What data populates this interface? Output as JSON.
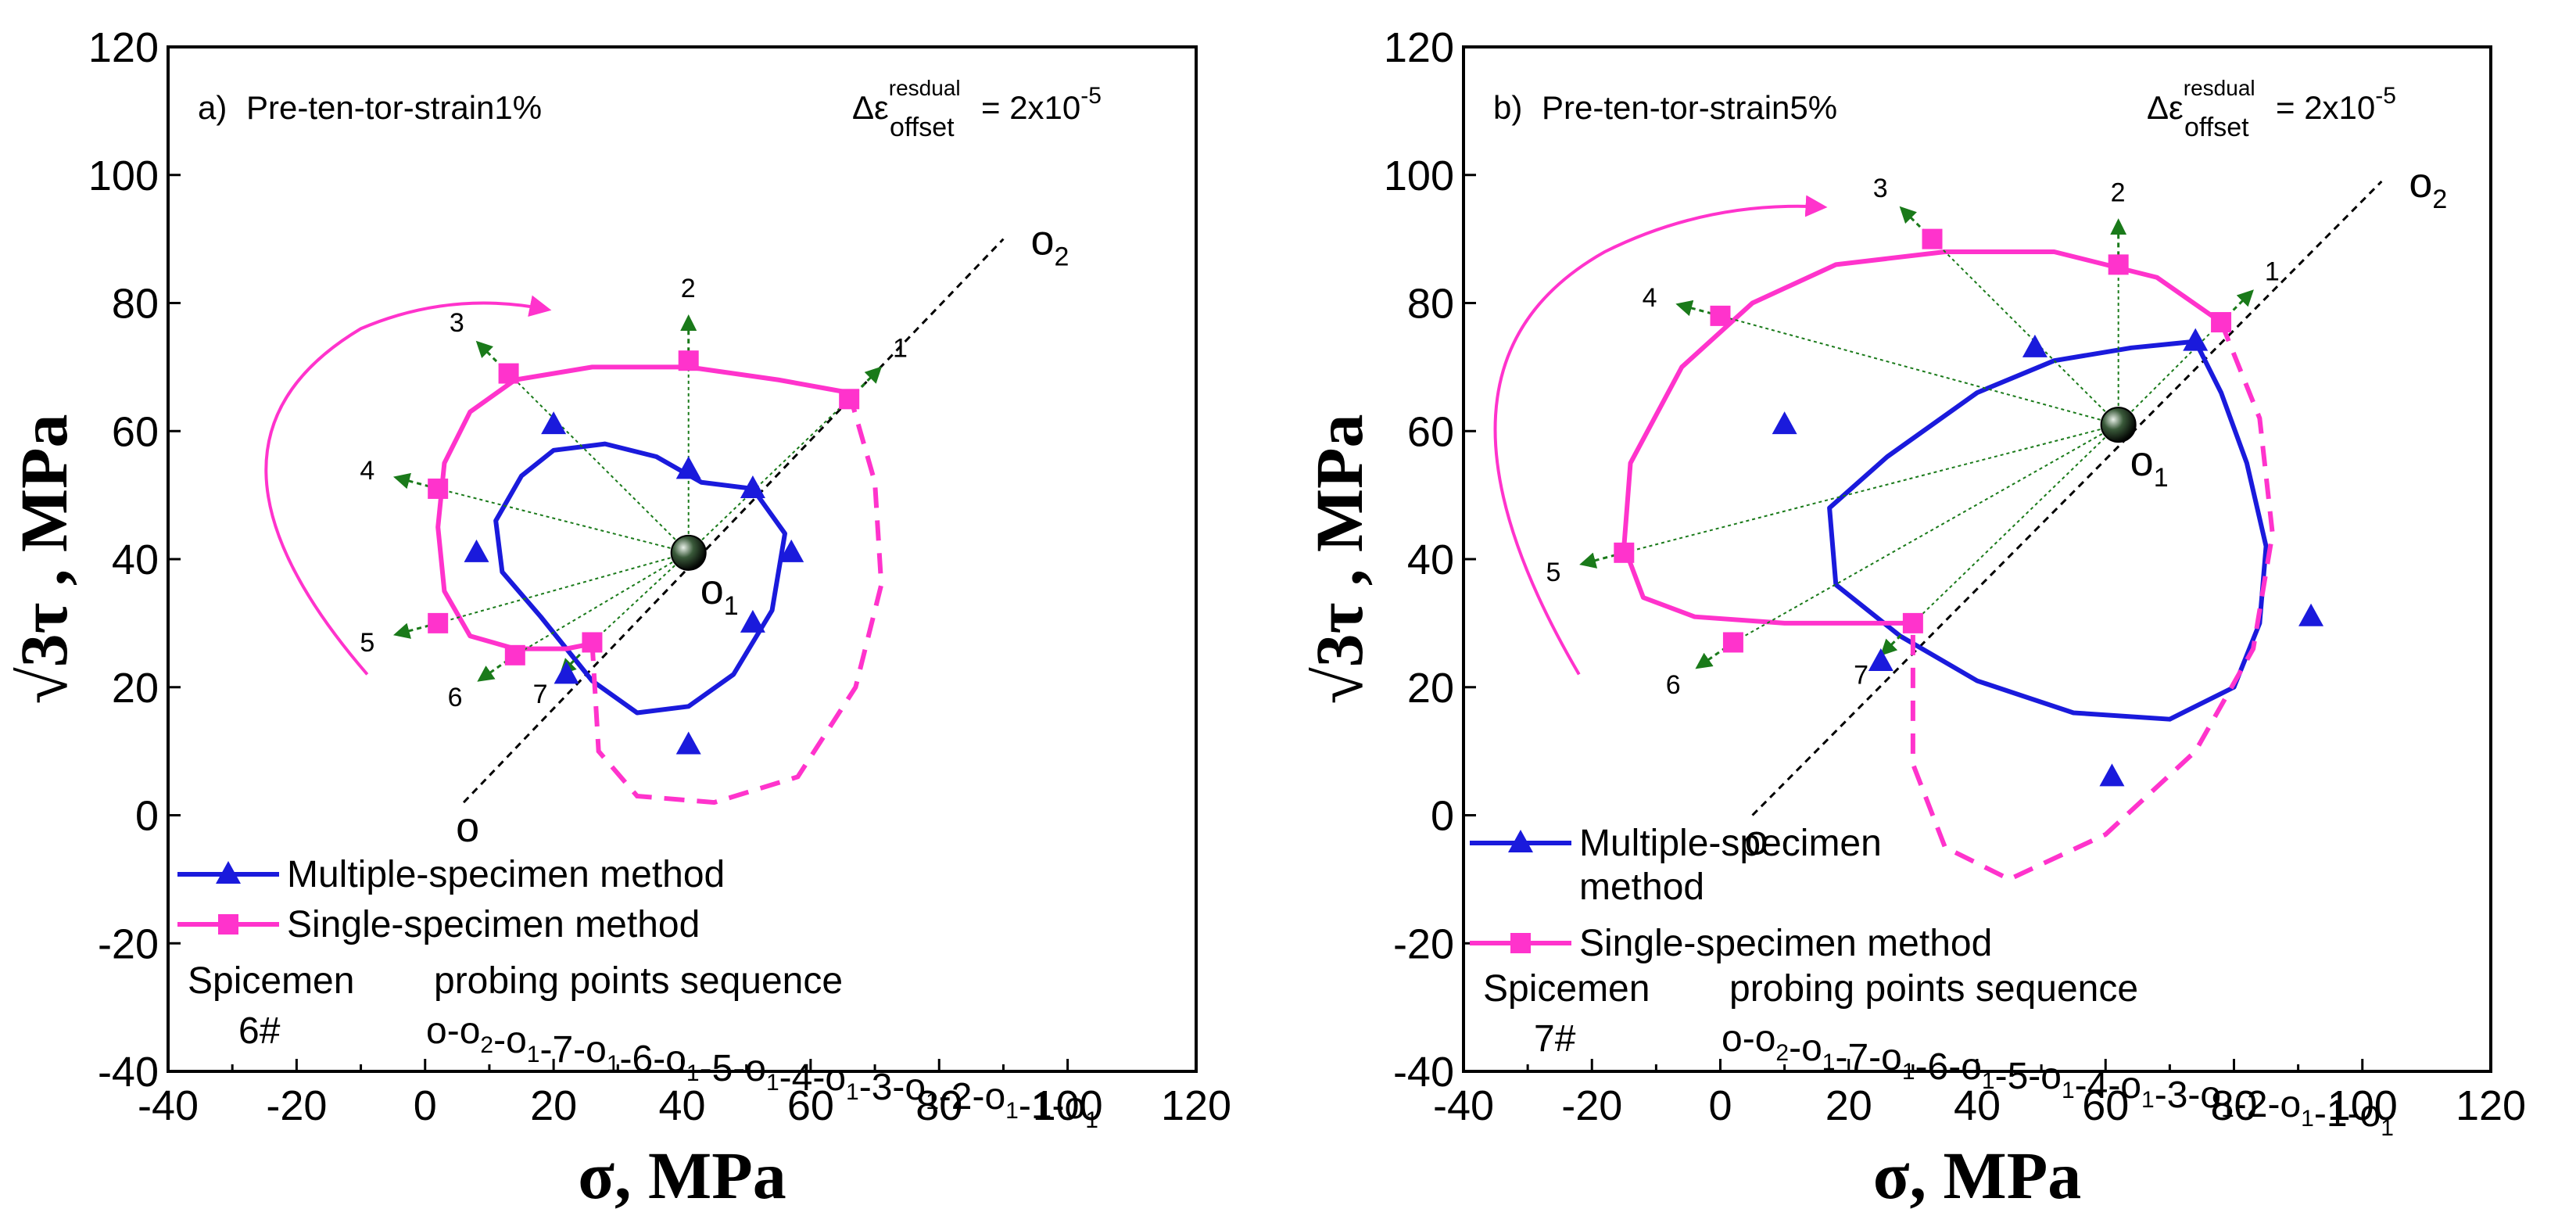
{
  "colors": {
    "multiple": "#1a1adc",
    "single": "#ff33cc",
    "probe": "#1a7a1a",
    "axis": "#000000"
  },
  "chart_data": [
    {
      "type": "scatter",
      "panel_label": "a)",
      "title": "Pre-ten-tor-strain1%",
      "offset_prefix": "Δε",
      "offset_sup": "resdual",
      "offset_sub": "offset",
      "offset_value": "= 2x10",
      "offset_exp": "-5",
      "xlabel": "σ,  MPa",
      "ylabel": "√3τ , MPa",
      "xlim": [
        -40,
        120
      ],
      "ylim": [
        -40,
        120
      ],
      "xticks": [
        "-40",
        "-20",
        "0",
        "20",
        "40",
        "60",
        "80",
        "100",
        "120"
      ],
      "yticks": [
        "-40",
        "-20",
        "0",
        "20",
        "40",
        "60",
        "80",
        "100",
        "120"
      ],
      "origin_o": {
        "label": "o",
        "x": 6,
        "y": 2
      },
      "origin_o1": {
        "label": "o",
        "sub": "1",
        "x": 41,
        "y": 41
      },
      "origin_o2": {
        "label": "o",
        "sub": "2",
        "x": 90,
        "y": 90
      },
      "probe_labels": [
        "1",
        "2",
        "3",
        "4",
        "5",
        "6",
        "7"
      ],
      "probe_dirs": [
        45,
        90,
        135,
        165,
        195,
        215,
        225
      ],
      "series": [
        {
          "name": "Multiple-specimen method",
          "marker": "triangle",
          "points": [
            [
              20,
              61
            ],
            [
              41,
              54
            ],
            [
              51,
              51
            ],
            [
              8,
              41
            ],
            [
              57,
              41
            ],
            [
              51,
              30
            ],
            [
              22,
              22
            ],
            [
              41,
              11
            ]
          ]
        },
        {
          "name": "Single-specimen method",
          "marker": "square",
          "points": [
            [
              13,
              69
            ],
            [
              41,
              71
            ],
            [
              66,
              65
            ],
            [
              2,
              51
            ],
            [
              2,
              30
            ],
            [
              14,
              25
            ],
            [
              26,
              27
            ]
          ]
        }
      ],
      "legend": {
        "multiple_label": "Multiple-specimen method",
        "single_label": "Single-specimen method",
        "single_label_b": "",
        "spec_head": "Spicemen",
        "spec_num": "6#",
        "seq_head": "probing points sequence",
        "seq_text": "o-o2-o1-7-o1-6-o1-5-o1-4-o1-3-o1-2-o1-1-o1"
      }
    },
    {
      "type": "scatter",
      "panel_label": "b)",
      "title": "Pre-ten-tor-strain5%",
      "offset_prefix": "Δε",
      "offset_sup": "resdual",
      "offset_sub": "offset",
      "offset_value": "= 2x10",
      "offset_exp": "-5",
      "xlabel": "σ,  MPa",
      "ylabel": "√3τ , MPa",
      "xlim": [
        -40,
        120
      ],
      "ylim": [
        -40,
        120
      ],
      "xticks": [
        "-40",
        "-20",
        "0",
        "20",
        "40",
        "60",
        "80",
        "100",
        "120"
      ],
      "yticks": [
        "-40",
        "-20",
        "0",
        "20",
        "40",
        "60",
        "80",
        "100",
        "120"
      ],
      "origin_o": {
        "label": "o",
        "x": 5,
        "y": 0
      },
      "origin_o1": {
        "label": "o",
        "sub": "1",
        "x": 62,
        "y": 61
      },
      "origin_o2": {
        "label": "o",
        "sub": "2",
        "x": 103,
        "y": 99
      },
      "probe_labels": [
        "1",
        "2",
        "3",
        "4",
        "5",
        "6",
        "7"
      ],
      "probe_dirs": [
        45,
        90,
        135,
        165,
        195,
        215,
        225
      ],
      "series": [
        {
          "name": "Multiple-specimen method",
          "marker": "triangle",
          "points": [
            [
              49,
              73
            ],
            [
              74,
              74
            ],
            [
              10,
              61
            ],
            [
              92,
              31
            ],
            [
              25,
              24
            ],
            [
              61,
              6
            ]
          ]
        },
        {
          "name": "Single-specimen method",
          "marker": "square",
          "points": [
            [
              33,
              90
            ],
            [
              62,
              86
            ],
            [
              78,
              77
            ],
            [
              0,
              78
            ],
            [
              -15,
              41
            ],
            [
              2,
              27
            ],
            [
              30,
              30
            ]
          ]
        }
      ],
      "legend": {
        "multiple_label": "Multiple-specimen",
        "multiple_label_b": "method",
        "single_label": "Single-specimen method",
        "spec_head": "Spicemen",
        "spec_num": "7#",
        "seq_head": "probing points sequence",
        "seq_text": "o-o2-o1-7-o1-6-o1-5-o1-4-o1-3-o1-2-o1-1-o1"
      }
    }
  ]
}
